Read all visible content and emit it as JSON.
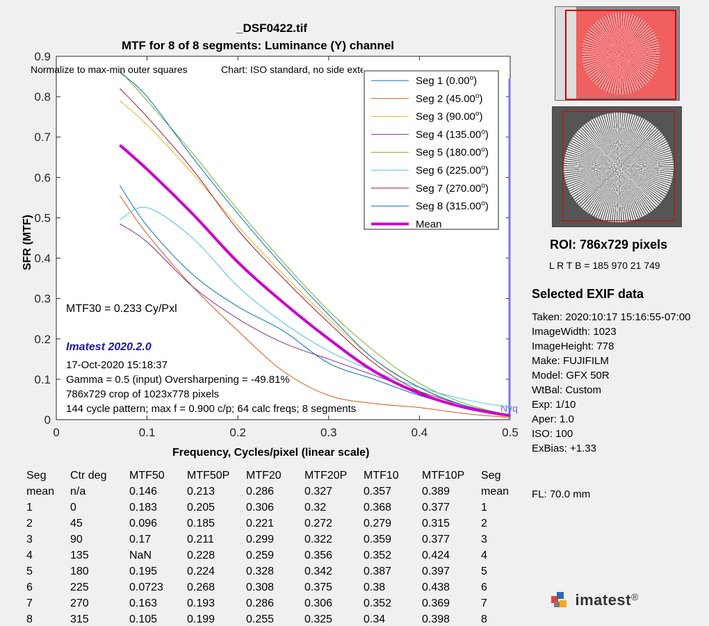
{
  "chart_data": {
    "type": "line",
    "title": "_DSF0422.tif",
    "subtitle": "MTF for 8 of 8 segments:  Luminance (Y) channel",
    "xlabel": "Frequency, Cycles/pixel (linear scale)",
    "ylabel": "SFR (MTF)",
    "xlim": [
      0,
      0.5
    ],
    "ylim": [
      0,
      0.9
    ],
    "x_ticks": [
      "0",
      "0.1",
      "0.2",
      "0.3",
      "0.4",
      "0.5"
    ],
    "y_ticks": [
      "0",
      "0.1",
      "0.2",
      "0.3",
      "0.4",
      "0.5",
      "0.6",
      "0.7",
      "0.8",
      "0.9"
    ],
    "grid": false,
    "legend_position": "top-right",
    "nyquist_label": "Nyq",
    "nyquist_x": 0.5,
    "series": [
      {
        "name": "Seg 1 (0.00",
        "color": "#0072bd",
        "width": 1,
        "points": [
          [
            0.07,
            0.58
          ],
          [
            0.1,
            0.48
          ],
          [
            0.15,
            0.36
          ],
          [
            0.2,
            0.28
          ],
          [
            0.25,
            0.22
          ],
          [
            0.3,
            0.14
          ],
          [
            0.35,
            0.1
          ],
          [
            0.4,
            0.06
          ],
          [
            0.45,
            0.03
          ],
          [
            0.5,
            0.01
          ]
        ]
      },
      {
        "name": "Seg 2 (45.00",
        "color": "#d95319",
        "width": 1,
        "points": [
          [
            0.07,
            0.555
          ],
          [
            0.1,
            0.46
          ],
          [
            0.15,
            0.33
          ],
          [
            0.2,
            0.22
          ],
          [
            0.25,
            0.12
          ],
          [
            0.3,
            0.06
          ],
          [
            0.35,
            0.04
          ],
          [
            0.4,
            0.03
          ],
          [
            0.45,
            0.015
          ],
          [
            0.5,
            0.005
          ]
        ]
      },
      {
        "name": "Seg 3 (90.00",
        "color": "#edb120",
        "width": 1,
        "points": [
          [
            0.07,
            0.79
          ],
          [
            0.1,
            0.73
          ],
          [
            0.15,
            0.61
          ],
          [
            0.2,
            0.48
          ],
          [
            0.25,
            0.36
          ],
          [
            0.3,
            0.25
          ],
          [
            0.35,
            0.15
          ],
          [
            0.4,
            0.08
          ],
          [
            0.45,
            0.03
          ],
          [
            0.5,
            0.005
          ]
        ]
      },
      {
        "name": "Seg 4 (135.00",
        "color": "#7e2f8e",
        "width": 1,
        "points": [
          [
            0.07,
            0.485
          ],
          [
            0.1,
            0.44
          ],
          [
            0.15,
            0.33
          ],
          [
            0.2,
            0.25
          ],
          [
            0.25,
            0.19
          ],
          [
            0.3,
            0.15
          ],
          [
            0.35,
            0.11
          ],
          [
            0.4,
            0.07
          ],
          [
            0.45,
            0.035
          ],
          [
            0.5,
            0.01
          ]
        ]
      },
      {
        "name": "Seg 5 (180.00",
        "color": "#77ac30",
        "width": 1,
        "points": [
          [
            0.07,
            0.865
          ],
          [
            0.1,
            0.79
          ],
          [
            0.15,
            0.66
          ],
          [
            0.2,
            0.52
          ],
          [
            0.25,
            0.39
          ],
          [
            0.3,
            0.27
          ],
          [
            0.35,
            0.17
          ],
          [
            0.4,
            0.09
          ],
          [
            0.45,
            0.04
          ],
          [
            0.5,
            0.01
          ]
        ]
      },
      {
        "name": "Seg 6 (225.00",
        "color": "#4dbeee",
        "width": 1,
        "points": [
          [
            0.07,
            0.495
          ],
          [
            0.1,
            0.525
          ],
          [
            0.15,
            0.45
          ],
          [
            0.2,
            0.33
          ],
          [
            0.25,
            0.24
          ],
          [
            0.3,
            0.17
          ],
          [
            0.35,
            0.12
          ],
          [
            0.4,
            0.08
          ],
          [
            0.45,
            0.05
          ],
          [
            0.5,
            0.03
          ]
        ]
      },
      {
        "name": "Seg 7 (270.00",
        "color": "#a2142f",
        "width": 1,
        "points": [
          [
            0.07,
            0.82
          ],
          [
            0.1,
            0.75
          ],
          [
            0.15,
            0.62
          ],
          [
            0.2,
            0.47
          ],
          [
            0.25,
            0.35
          ],
          [
            0.3,
            0.24
          ],
          [
            0.35,
            0.14
          ],
          [
            0.4,
            0.07
          ],
          [
            0.45,
            0.03
          ],
          [
            0.5,
            0.01
          ]
        ]
      },
      {
        "name": "Seg 8 (315.00",
        "color": "#0072bd",
        "width": 1,
        "points": [
          [
            0.07,
            0.86
          ],
          [
            0.1,
            0.8
          ],
          [
            0.15,
            0.65
          ],
          [
            0.2,
            0.51
          ],
          [
            0.25,
            0.38
          ],
          [
            0.3,
            0.26
          ],
          [
            0.35,
            0.15
          ],
          [
            0.4,
            0.08
          ],
          [
            0.45,
            0.035
          ],
          [
            0.5,
            0.01
          ]
        ]
      },
      {
        "name": "Mean",
        "color": "#cc00cc",
        "width": 4,
        "points": [
          [
            0.07,
            0.68
          ],
          [
            0.1,
            0.62
          ],
          [
            0.15,
            0.51
          ],
          [
            0.2,
            0.39
          ],
          [
            0.25,
            0.29
          ],
          [
            0.3,
            0.2
          ],
          [
            0.35,
            0.12
          ],
          [
            0.4,
            0.065
          ],
          [
            0.45,
            0.03
          ],
          [
            0.5,
            0.01
          ]
        ]
      }
    ],
    "legend_superscript": "o",
    "legend_suffix": ")",
    "annotations": {
      "normalize": "Normalize to max-min outer squares",
      "chart": "Chart: ISO standard, no side extension",
      "mtf30": "MTF30 = 0.233 Cy/Pxl",
      "version": "Imatest 2020.2.0",
      "date": "17-Oct-2020 15:18:37",
      "gamma": "Gamma = 0.5 (input)  Oversharpening = -49.81%",
      "crop": "786x729 crop of 1023x778 pixels",
      "pattern": "144 cycle pattern; max f = 0.900 c/p;  64 calc freqs;  8 segments"
    }
  },
  "table": {
    "header1": [
      "Seg",
      "Ctr deg",
      "MTF50",
      "MTF50P",
      "MTF20",
      "MTF20P",
      "MTF10",
      "MTF10P",
      "Seg"
    ],
    "rows": [
      [
        "mean",
        "n/a",
        "0.146",
        "0.213",
        "0.286",
        "0.327",
        "0.357",
        "0.389",
        "mean"
      ],
      [
        "1",
        "0",
        "0.183",
        "0.205",
        "0.306",
        "0.32",
        "0.368",
        "0.377",
        "1"
      ],
      [
        "2",
        "45",
        "0.096",
        "0.185",
        "0.221",
        "0.272",
        "0.279",
        "0.315",
        "2"
      ],
      [
        "3",
        "90",
        "0.17",
        "0.211",
        "0.299",
        "0.322",
        "0.359",
        "0.377",
        "3"
      ],
      [
        "4",
        "135",
        "NaN",
        "0.228",
        "0.259",
        "0.356",
        "0.352",
        "0.424",
        "4"
      ],
      [
        "5",
        "180",
        "0.195",
        "0.224",
        "0.328",
        "0.342",
        "0.387",
        "0.397",
        "5"
      ],
      [
        "6",
        "225",
        "0.0723",
        "0.268",
        "0.308",
        "0.375",
        "0.38",
        "0.438",
        "6"
      ],
      [
        "7",
        "270",
        "0.163",
        "0.193",
        "0.286",
        "0.306",
        "0.352",
        "0.369",
        "7"
      ],
      [
        "8",
        "315",
        "0.105",
        "0.199",
        "0.255",
        "0.325",
        "0.34",
        "0.398",
        "8"
      ]
    ]
  },
  "roi": {
    "title": "ROI:  786x729 pixels",
    "lrtb": "L R  T B = 185 970  21 749"
  },
  "exif": {
    "title": "Selected EXIF data",
    "lines": [
      "Taken: 2020:10:17 15:16:55-07:00",
      "ImageWidth:  1023",
      "ImageHeight:  778",
      "Make:  FUJIFILM",
      "Model:  GFX 50R",
      "WtBal:  Custom",
      "Exp:   1/10",
      "Aper:  1.0",
      "ISO:   100",
      "ExBias:  +1.33"
    ],
    "fl": "FL:   70.0 mm"
  },
  "logo": {
    "text": "imatest",
    "mark": "®"
  }
}
